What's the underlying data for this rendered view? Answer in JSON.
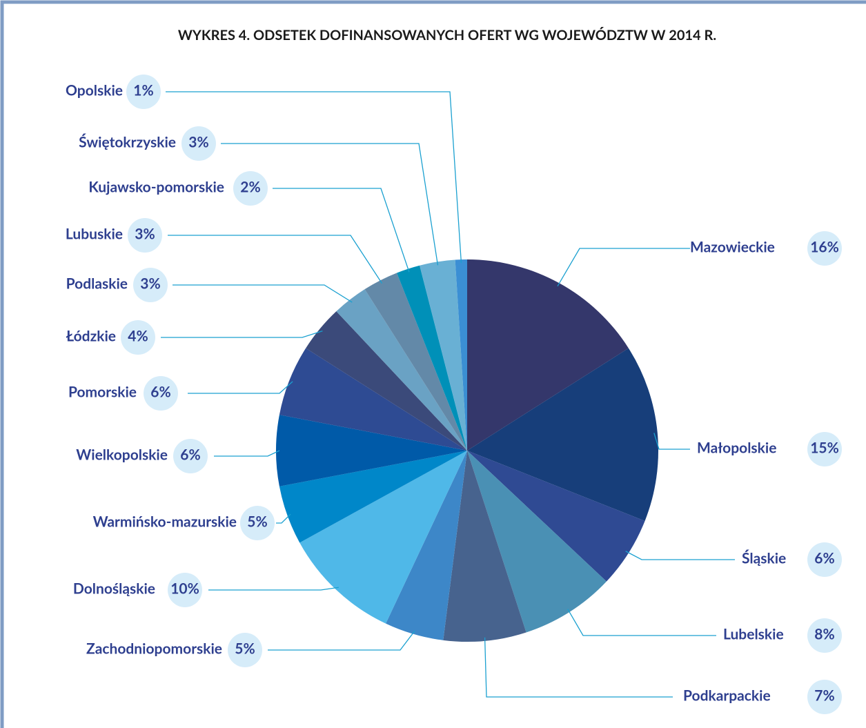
{
  "chart_data": {
    "type": "pie",
    "title": "WYKRES 4. ODSETEK  DOFINANSOWANYCH OFERT WG WOJEWÓDZTW W 2014 R.",
    "categories": [
      "Mazowieckie",
      "Małopolskie",
      "Śląskie",
      "Lubelskie",
      "Podkarpackie",
      "Zachodniopomorskie",
      "Dolnośląskie",
      "Warmińsko-mazurskie",
      "Wielkopolskie",
      "Pomorskie",
      "Łódzkie",
      "Podlaskie",
      "Lubuskie",
      "Kujawsko-pomorskie",
      "Świętokrzyskie",
      "Opolskie"
    ],
    "values": [
      16,
      15,
      6,
      8,
      7,
      5,
      10,
      5,
      6,
      6,
      4,
      3,
      3,
      2,
      3,
      1
    ],
    "value_labels": [
      "16%",
      "15%",
      "6%",
      "8%",
      "7%",
      "5%",
      "10%",
      "5%",
      "6%",
      "6%",
      "4%",
      "3%",
      "3%",
      "2%",
      "3%",
      "1%"
    ],
    "colors": [
      "#34376b",
      "#173e7a",
      "#2f4a93",
      "#4a90b4",
      "#47638e",
      "#3d87c8",
      "#4fb8e8",
      "#0087c9",
      "#005aa8",
      "#2e4b93",
      "#3b4a7a",
      "#6aa2c4",
      "#6389a8",
      "#0090b8",
      "#69b0d4",
      "#3b8fd4"
    ]
  }
}
